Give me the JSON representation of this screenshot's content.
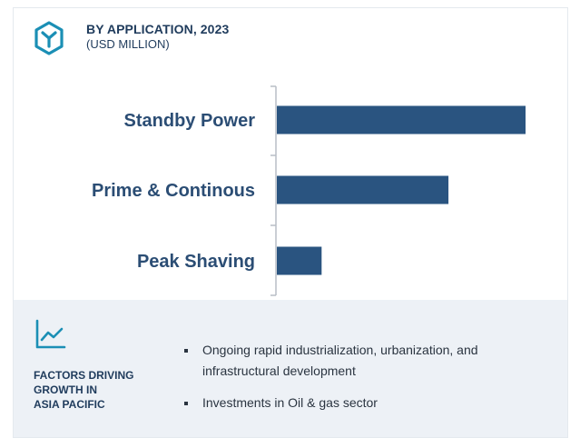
{
  "header": {
    "title": "BY APPLICATION, 2023",
    "subtitle": "(USD MILLION)",
    "logo_icon": "hexagon-y-logo-icon"
  },
  "chart_data": {
    "type": "bar",
    "orientation": "horizontal",
    "categories": [
      "Standby Power",
      "Prime & Continous",
      "Peak Shaving"
    ],
    "values": [
      100,
      69,
      18
    ],
    "value_scale": "relative (no axis values printed)",
    "xlim": [
      0,
      100
    ],
    "bar_color": "#2a5480",
    "label_color": "#2b4d74",
    "axis_color": "#b8bec6",
    "grid": false
  },
  "footer": {
    "icon": "trend-chart-icon",
    "factors_lines": [
      "FACTORS DRIVING",
      "GROWTH IN",
      "ASIA PACIFIC"
    ],
    "bullets": [
      "Ongoing rapid industrialization, urbanization, and infrastructural development",
      "Investments in Oil & gas sector"
    ],
    "background": "#edf1f6",
    "accent": "#1b8fb5"
  }
}
